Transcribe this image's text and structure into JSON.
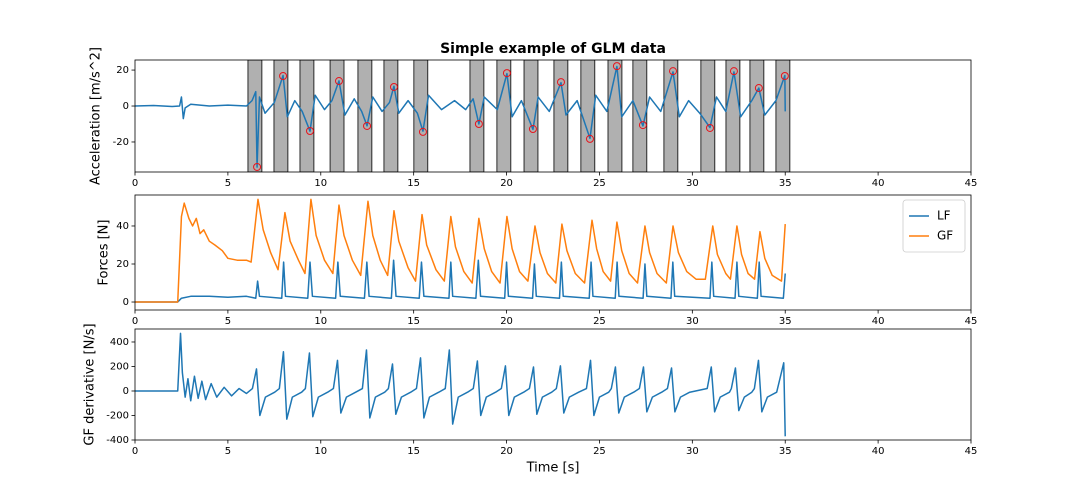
{
  "chart_data": [
    {
      "type": "line",
      "title": "Simple example of GLM data",
      "y_label": "Acceleration [m/s^2]",
      "color": "#1f77b4",
      "x": [
        0,
        1,
        2,
        2.4,
        2.5,
        2.6,
        2.7,
        3,
        4,
        5,
        6,
        6.3,
        6.5,
        6.57,
        6.7,
        7,
        7.5,
        7.97,
        8.2,
        8.6,
        9,
        9.42,
        9.7,
        10.2,
        10.6,
        10.98,
        11.3,
        11.8,
        12.2,
        12.49,
        12.8,
        13.3,
        13.7,
        13.94,
        14.2,
        14.7,
        15.2,
        15.5,
        15.8,
        16.5,
        17.2,
        17.8,
        18.2,
        18.51,
        18.8,
        19.5,
        20.02,
        20.3,
        20.8,
        21.42,
        21.7,
        22.3,
        22.93,
        23.2,
        23.8,
        24.49,
        24.8,
        25.4,
        25.94,
        26.2,
        26.8,
        27.34,
        27.7,
        28.3,
        28.96,
        29.3,
        29.8,
        30.4,
        30.95,
        31.3,
        31.8,
        32.24,
        32.6,
        33.2,
        33.58,
        33.9,
        34.5,
        34.98,
        35
      ],
      "values": [
        0,
        0.3,
        -0.3,
        0,
        5,
        -7,
        -1,
        1,
        0,
        0.5,
        0,
        3,
        8,
        -34,
        5,
        -4,
        2,
        17,
        -6,
        3,
        -3,
        -14,
        6,
        -2,
        3,
        14,
        -5,
        4,
        -3,
        -11,
        5,
        -3,
        2,
        11,
        -4,
        3,
        -4,
        -14,
        6,
        -2,
        3,
        -2,
        4,
        -10,
        5,
        -2,
        18,
        -6,
        3,
        -13,
        5,
        -3,
        13,
        -5,
        3,
        -18,
        6,
        -3,
        22,
        -6,
        3,
        -11,
        5,
        -3,
        19,
        -6,
        3,
        -4,
        -12,
        5,
        -3,
        19,
        -6,
        3,
        10,
        -5,
        3,
        17,
        -3
      ],
      "shaded_regions": [
        [
          6.08,
          6.83
        ],
        [
          7.48,
          8.23
        ],
        [
          8.88,
          9.63
        ],
        [
          10.5,
          11.25
        ],
        [
          12.0,
          12.75
        ],
        [
          13.4,
          14.15
        ],
        [
          15.01,
          15.76
        ],
        [
          18.03,
          18.78
        ],
        [
          19.48,
          20.23
        ],
        [
          20.94,
          21.69
        ],
        [
          22.55,
          23.3
        ],
        [
          24.0,
          24.75
        ],
        [
          25.46,
          26.21
        ],
        [
          26.8,
          27.55
        ],
        [
          28.47,
          29.22
        ],
        [
          30.46,
          31.21
        ],
        [
          31.81,
          32.56
        ],
        [
          33.1,
          33.85
        ],
        [
          34.5,
          35.25
        ]
      ],
      "shaded_color": "#b0b0b0",
      "events": {
        "color": "#e8141c",
        "x": [
          6.57,
          7.97,
          9.42,
          10.98,
          12.49,
          13.94,
          15.5,
          18.51,
          20.02,
          21.42,
          22.93,
          24.49,
          25.94,
          27.34,
          28.96,
          30.95,
          32.24,
          33.58,
          34.98
        ],
        "values": [
          -33.9,
          16.7,
          -13.9,
          13.9,
          -11.1,
          10.6,
          -14.4,
          -10,
          18.3,
          -12.8,
          13.3,
          -18.3,
          22.2,
          -10.6,
          19.4,
          -12.2,
          19.4,
          10,
          16.7
        ]
      },
      "xlim": [
        0,
        45
      ],
      "xticks": [
        0,
        5,
        10,
        15,
        20,
        25,
        30,
        35,
        40,
        45
      ],
      "ylim": [
        -36.7,
        25.6
      ],
      "yticks": [
        -20,
        0,
        20
      ]
    },
    {
      "type": "line",
      "y_label": "Forces [N]",
      "legend": "upper right",
      "series": [
        {
          "name": "LF",
          "color": "#1f77b4",
          "x": [
            0,
            2.3,
            2.5,
            3,
            4,
            5,
            6,
            6.5,
            6.6,
            6.7,
            7.9,
            8.0,
            8.1,
            9.3,
            9.42,
            9.55,
            10.8,
            10.92,
            11.05,
            12.35,
            12.48,
            12.6,
            13.8,
            13.92,
            14.05,
            15.3,
            15.42,
            15.55,
            16.9,
            17.0,
            17.1,
            18.35,
            18.48,
            18.6,
            19.9,
            20.0,
            20.1,
            21.4,
            21.5,
            21.6,
            22.85,
            22.95,
            23.05,
            24.45,
            24.55,
            24.65,
            25.85,
            25.95,
            26.05,
            27.35,
            27.45,
            27.55,
            28.85,
            28.95,
            29.05,
            30.95,
            31.05,
            31.15,
            32.3,
            32.4,
            32.5,
            33.5,
            33.6,
            33.7,
            34.9,
            35.0
          ],
          "values": [
            0,
            0,
            2,
            3,
            3,
            2.5,
            3,
            2,
            11,
            3,
            2,
            21,
            3,
            2,
            21,
            3,
            2,
            21,
            3,
            2,
            21,
            3,
            2,
            22,
            3,
            2,
            21,
            3,
            2,
            21,
            3,
            2,
            22,
            3,
            2,
            21,
            3,
            2,
            20,
            3,
            2,
            21,
            3,
            2,
            21,
            3,
            2,
            21,
            3,
            2,
            20,
            3,
            2,
            21,
            3,
            2,
            21,
            3,
            2,
            21,
            3,
            2,
            21,
            3,
            2,
            15
          ]
        },
        {
          "name": "GF",
          "color": "#ff7f0e",
          "x": [
            0,
            2.3,
            2.5,
            2.65,
            2.9,
            3.1,
            3.3,
            3.5,
            3.7,
            4,
            4.3,
            4.7,
            5,
            5.5,
            6,
            6.25,
            6.62,
            6.9,
            7.3,
            7.7,
            8.07,
            8.35,
            8.8,
            9.15,
            9.47,
            9.75,
            10.2,
            10.65,
            10.98,
            11.25,
            11.7,
            12.15,
            12.54,
            12.8,
            13.2,
            13.6,
            13.94,
            14.2,
            14.7,
            15.1,
            15.45,
            15.7,
            16.2,
            16.65,
            17.0,
            17.25,
            17.7,
            18.15,
            18.51,
            18.8,
            19.2,
            19.65,
            20.02,
            20.3,
            20.7,
            21.15,
            21.53,
            21.8,
            22.2,
            22.65,
            22.98,
            23.25,
            23.7,
            24.2,
            24.6,
            24.85,
            25.2,
            25.6,
            25.94,
            26.2,
            26.6,
            27.05,
            27.45,
            27.7,
            28.1,
            28.6,
            28.96,
            29.25,
            29.7,
            30.2,
            30.7,
            31.1,
            31.35,
            31.8,
            32.05,
            32.4,
            32.65,
            33.0,
            33.35,
            33.64,
            33.9,
            34.3,
            34.8,
            35.0
          ],
          "values": [
            0,
            0,
            45,
            52,
            44,
            40,
            44,
            36,
            38,
            32,
            30,
            27,
            23,
            22,
            22,
            21,
            54,
            38,
            26,
            17,
            47,
            32,
            22,
            15,
            54,
            35,
            22,
            15,
            51,
            35,
            22,
            14,
            53,
            35,
            22,
            14,
            48,
            32,
            18,
            11,
            46,
            30,
            17,
            11,
            45,
            29,
            16,
            10,
            44,
            28,
            16,
            10,
            45,
            28,
            16,
            11,
            40,
            26,
            15,
            10,
            41,
            27,
            15,
            10,
            43,
            28,
            16,
            11,
            42,
            27,
            15,
            10,
            40,
            26,
            15,
            10,
            40,
            26,
            16,
            12,
            12,
            40,
            25,
            15,
            12,
            40,
            25,
            15,
            12,
            37,
            23,
            14,
            11,
            41
          ]
        }
      ],
      "xlim": [
        0,
        45
      ],
      "xticks": [
        0,
        5,
        10,
        15,
        20,
        25,
        30,
        35,
        40,
        45
      ],
      "ylim": [
        -4.2,
        56.3
      ],
      "yticks": [
        0,
        20,
        40
      ]
    },
    {
      "type": "line",
      "y_label": "GF derivative [N/s]",
      "x_label": "Time [s]",
      "color": "#1f77b4",
      "x": [
        0,
        2.3,
        2.45,
        2.55,
        2.7,
        2.85,
        3.0,
        3.2,
        3.4,
        3.6,
        3.8,
        4.1,
        4.4,
        4.8,
        5.2,
        5.6,
        6.0,
        6.32,
        6.54,
        6.72,
        7.02,
        7.52,
        7.77,
        7.99,
        8.17,
        8.47,
        8.97,
        9.17,
        9.39,
        9.57,
        9.87,
        10.37,
        10.68,
        10.9,
        11.08,
        11.38,
        11.88,
        12.24,
        12.46,
        12.64,
        12.94,
        13.44,
        13.64,
        13.86,
        14.04,
        14.34,
        14.84,
        15.15,
        15.37,
        15.55,
        15.85,
        16.35,
        16.7,
        16.92,
        17.1,
        17.4,
        17.9,
        18.21,
        18.43,
        18.61,
        18.91,
        19.41,
        19.72,
        19.94,
        20.12,
        20.42,
        20.92,
        21.23,
        21.45,
        21.63,
        21.93,
        22.43,
        22.68,
        22.9,
        23.08,
        23.38,
        23.88,
        24.3,
        24.52,
        24.7,
        25.0,
        25.5,
        25.64,
        25.86,
        26.04,
        26.34,
        26.84,
        27.15,
        27.37,
        27.55,
        27.85,
        28.35,
        28.66,
        28.88,
        29.06,
        29.36,
        29.86,
        30.8,
        31.02,
        31.2,
        31.5,
        32.0,
        32.1,
        32.32,
        32.5,
        32.8,
        33.2,
        33.34,
        33.56,
        33.74,
        34.04,
        34.54,
        34.92,
        35.0
      ],
      "values": [
        0,
        0,
        470,
        150,
        -50,
        100,
        -80,
        120,
        -60,
        80,
        -70,
        60,
        -50,
        30,
        -40,
        20,
        -20,
        20,
        180,
        -200,
        -50,
        -10,
        20,
        320,
        -230,
        -50,
        -10,
        20,
        310,
        -210,
        -50,
        -10,
        20,
        250,
        -180,
        -50,
        -10,
        20,
        335,
        -220,
        -50,
        -10,
        20,
        220,
        -190,
        -50,
        -10,
        20,
        270,
        -220,
        -50,
        -10,
        20,
        335,
        -270,
        -50,
        -10,
        20,
        245,
        -200,
        -50,
        -10,
        20,
        205,
        -200,
        -50,
        -10,
        20,
        196,
        -190,
        -50,
        -10,
        20,
        205,
        -180,
        -50,
        -10,
        20,
        250,
        -200,
        -50,
        -10,
        20,
        196,
        -180,
        -50,
        -10,
        20,
        196,
        -170,
        -50,
        -10,
        20,
        188,
        -170,
        -50,
        -10,
        20,
        196,
        -170,
        -50,
        -10,
        20,
        188,
        -160,
        -50,
        -10,
        20,
        250,
        -170,
        -50,
        -10,
        230,
        -370
      ],
      "xlim": [
        0,
        45
      ],
      "xticks": [
        0,
        5,
        10,
        15,
        20,
        25,
        30,
        35,
        40,
        45
      ],
      "ylim": [
        -400,
        506
      ],
      "yticks": [
        -400,
        -200,
        0,
        200,
        400
      ]
    }
  ]
}
